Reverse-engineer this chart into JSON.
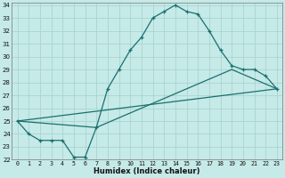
{
  "xlabel": "Humidex (Indice chaleur)",
  "xlim": [
    -0.5,
    23.5
  ],
  "ylim": [
    22,
    34.2
  ],
  "xticks": [
    0,
    1,
    2,
    3,
    4,
    5,
    6,
    7,
    8,
    9,
    10,
    11,
    12,
    13,
    14,
    15,
    16,
    17,
    18,
    19,
    20,
    21,
    22,
    23
  ],
  "yticks": [
    22,
    23,
    24,
    25,
    26,
    27,
    28,
    29,
    30,
    31,
    32,
    33,
    34
  ],
  "bg_color": "#c5eae7",
  "grid_color": "#aad4d0",
  "line_color": "#1a7070",
  "curve_x": [
    0,
    1,
    2,
    3,
    4,
    5,
    6,
    7,
    8,
    9,
    10,
    11,
    12,
    13,
    14,
    15,
    16,
    17,
    18,
    19,
    20,
    21,
    22,
    23
  ],
  "curve_y": [
    25.0,
    24.0,
    23.5,
    23.5,
    23.5,
    22.2,
    22.2,
    24.5,
    27.5,
    29.0,
    30.5,
    31.5,
    33.0,
    33.5,
    34.0,
    33.5,
    33.3,
    32.0,
    30.5,
    29.3,
    29.0,
    29.0,
    28.5,
    27.5
  ],
  "line2_x": [
    0,
    23
  ],
  "line2_y": [
    25.0,
    27.5
  ],
  "line3_x": [
    0,
    7,
    19,
    23
  ],
  "line3_y": [
    25.0,
    24.5,
    29.0,
    27.5
  ],
  "marker": "+"
}
